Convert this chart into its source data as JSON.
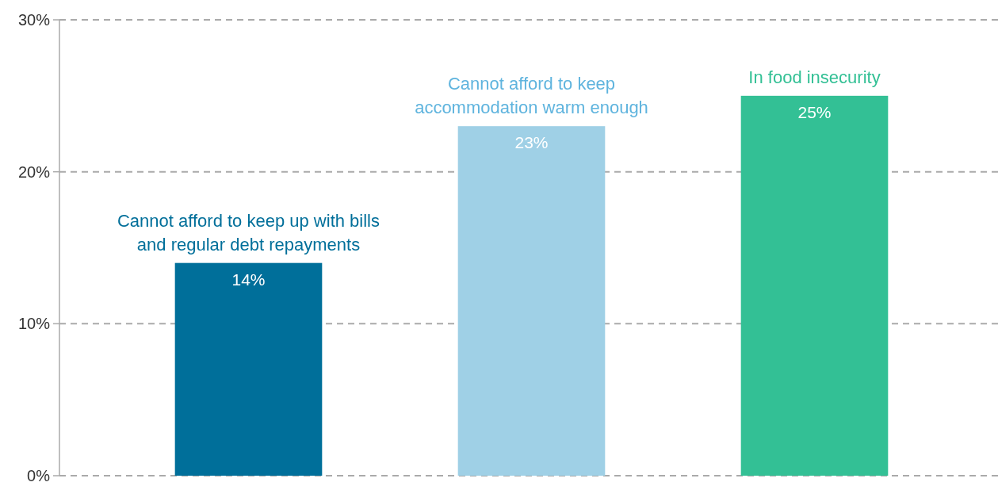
{
  "chart_data": {
    "type": "bar",
    "categories": [
      "Cannot afford to keep up with bills and regular debt repayments",
      "Cannot afford to keep accommodation warm enough",
      "In food insecurity"
    ],
    "values": [
      14,
      23,
      25
    ],
    "colors": [
      "#006f9a",
      "#9fd0e6",
      "#33c095"
    ],
    "ylim": [
      0,
      30
    ],
    "yticks": [
      {
        "value": 0,
        "label": "0%"
      },
      {
        "value": 10,
        "label": "10%"
      },
      {
        "value": 20,
        "label": "20%"
      },
      {
        "value": 30,
        "label": "30%"
      }
    ],
    "grid": "y",
    "data_labels": true,
    "value_labels": [
      "14%",
      "23%",
      "25%"
    ]
  }
}
